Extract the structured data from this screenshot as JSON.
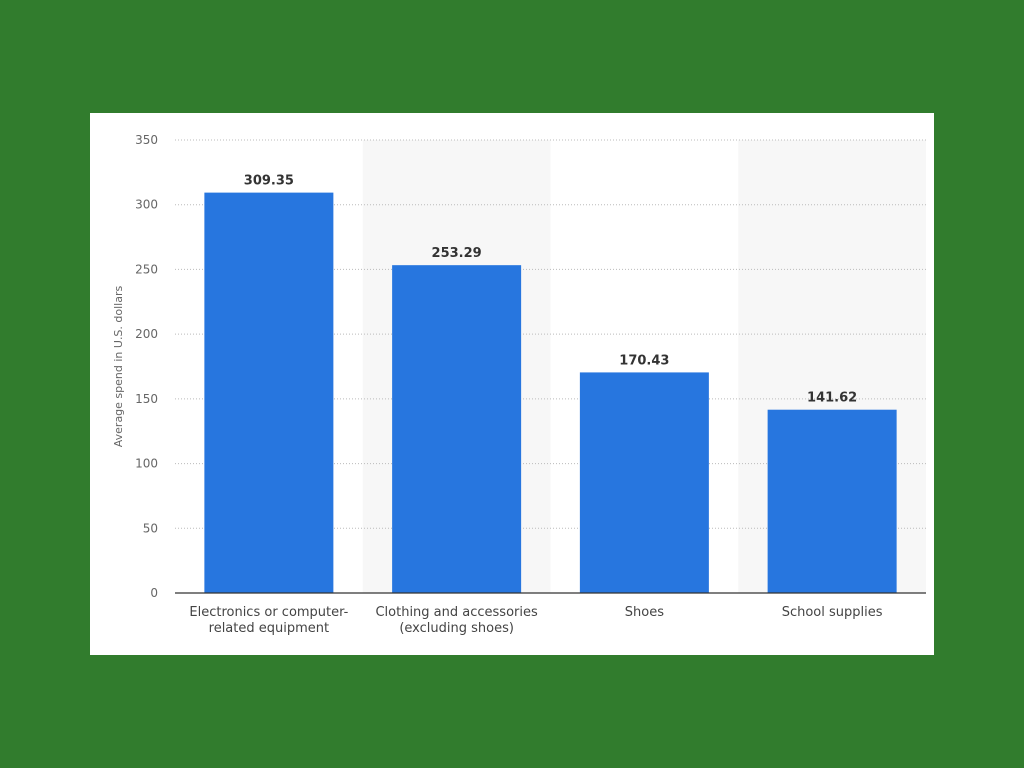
{
  "chart_data": {
    "type": "bar",
    "categories": [
      [
        "Electronics or computer-",
        "related equipment"
      ],
      [
        "Clothing and accessories",
        "(excluding shoes)"
      ],
      [
        "Shoes"
      ],
      [
        "School supplies"
      ]
    ],
    "values": [
      309.35,
      253.29,
      170.43,
      141.62
    ],
    "value_labels": [
      "309.35",
      "253.29",
      "170.43",
      "141.62"
    ],
    "title": "",
    "xlabel": "",
    "ylabel": "Average spend in U.S. dollars",
    "ylim": [
      0,
      350
    ],
    "yticks": [
      0,
      50,
      100,
      150,
      200,
      250,
      300,
      350
    ],
    "grid": true,
    "legend": "none"
  },
  "colors": {
    "page_background": "#317c2d",
    "bar": "#2776df",
    "band": "#f7f7f7",
    "grid": "#bbbbbb"
  }
}
